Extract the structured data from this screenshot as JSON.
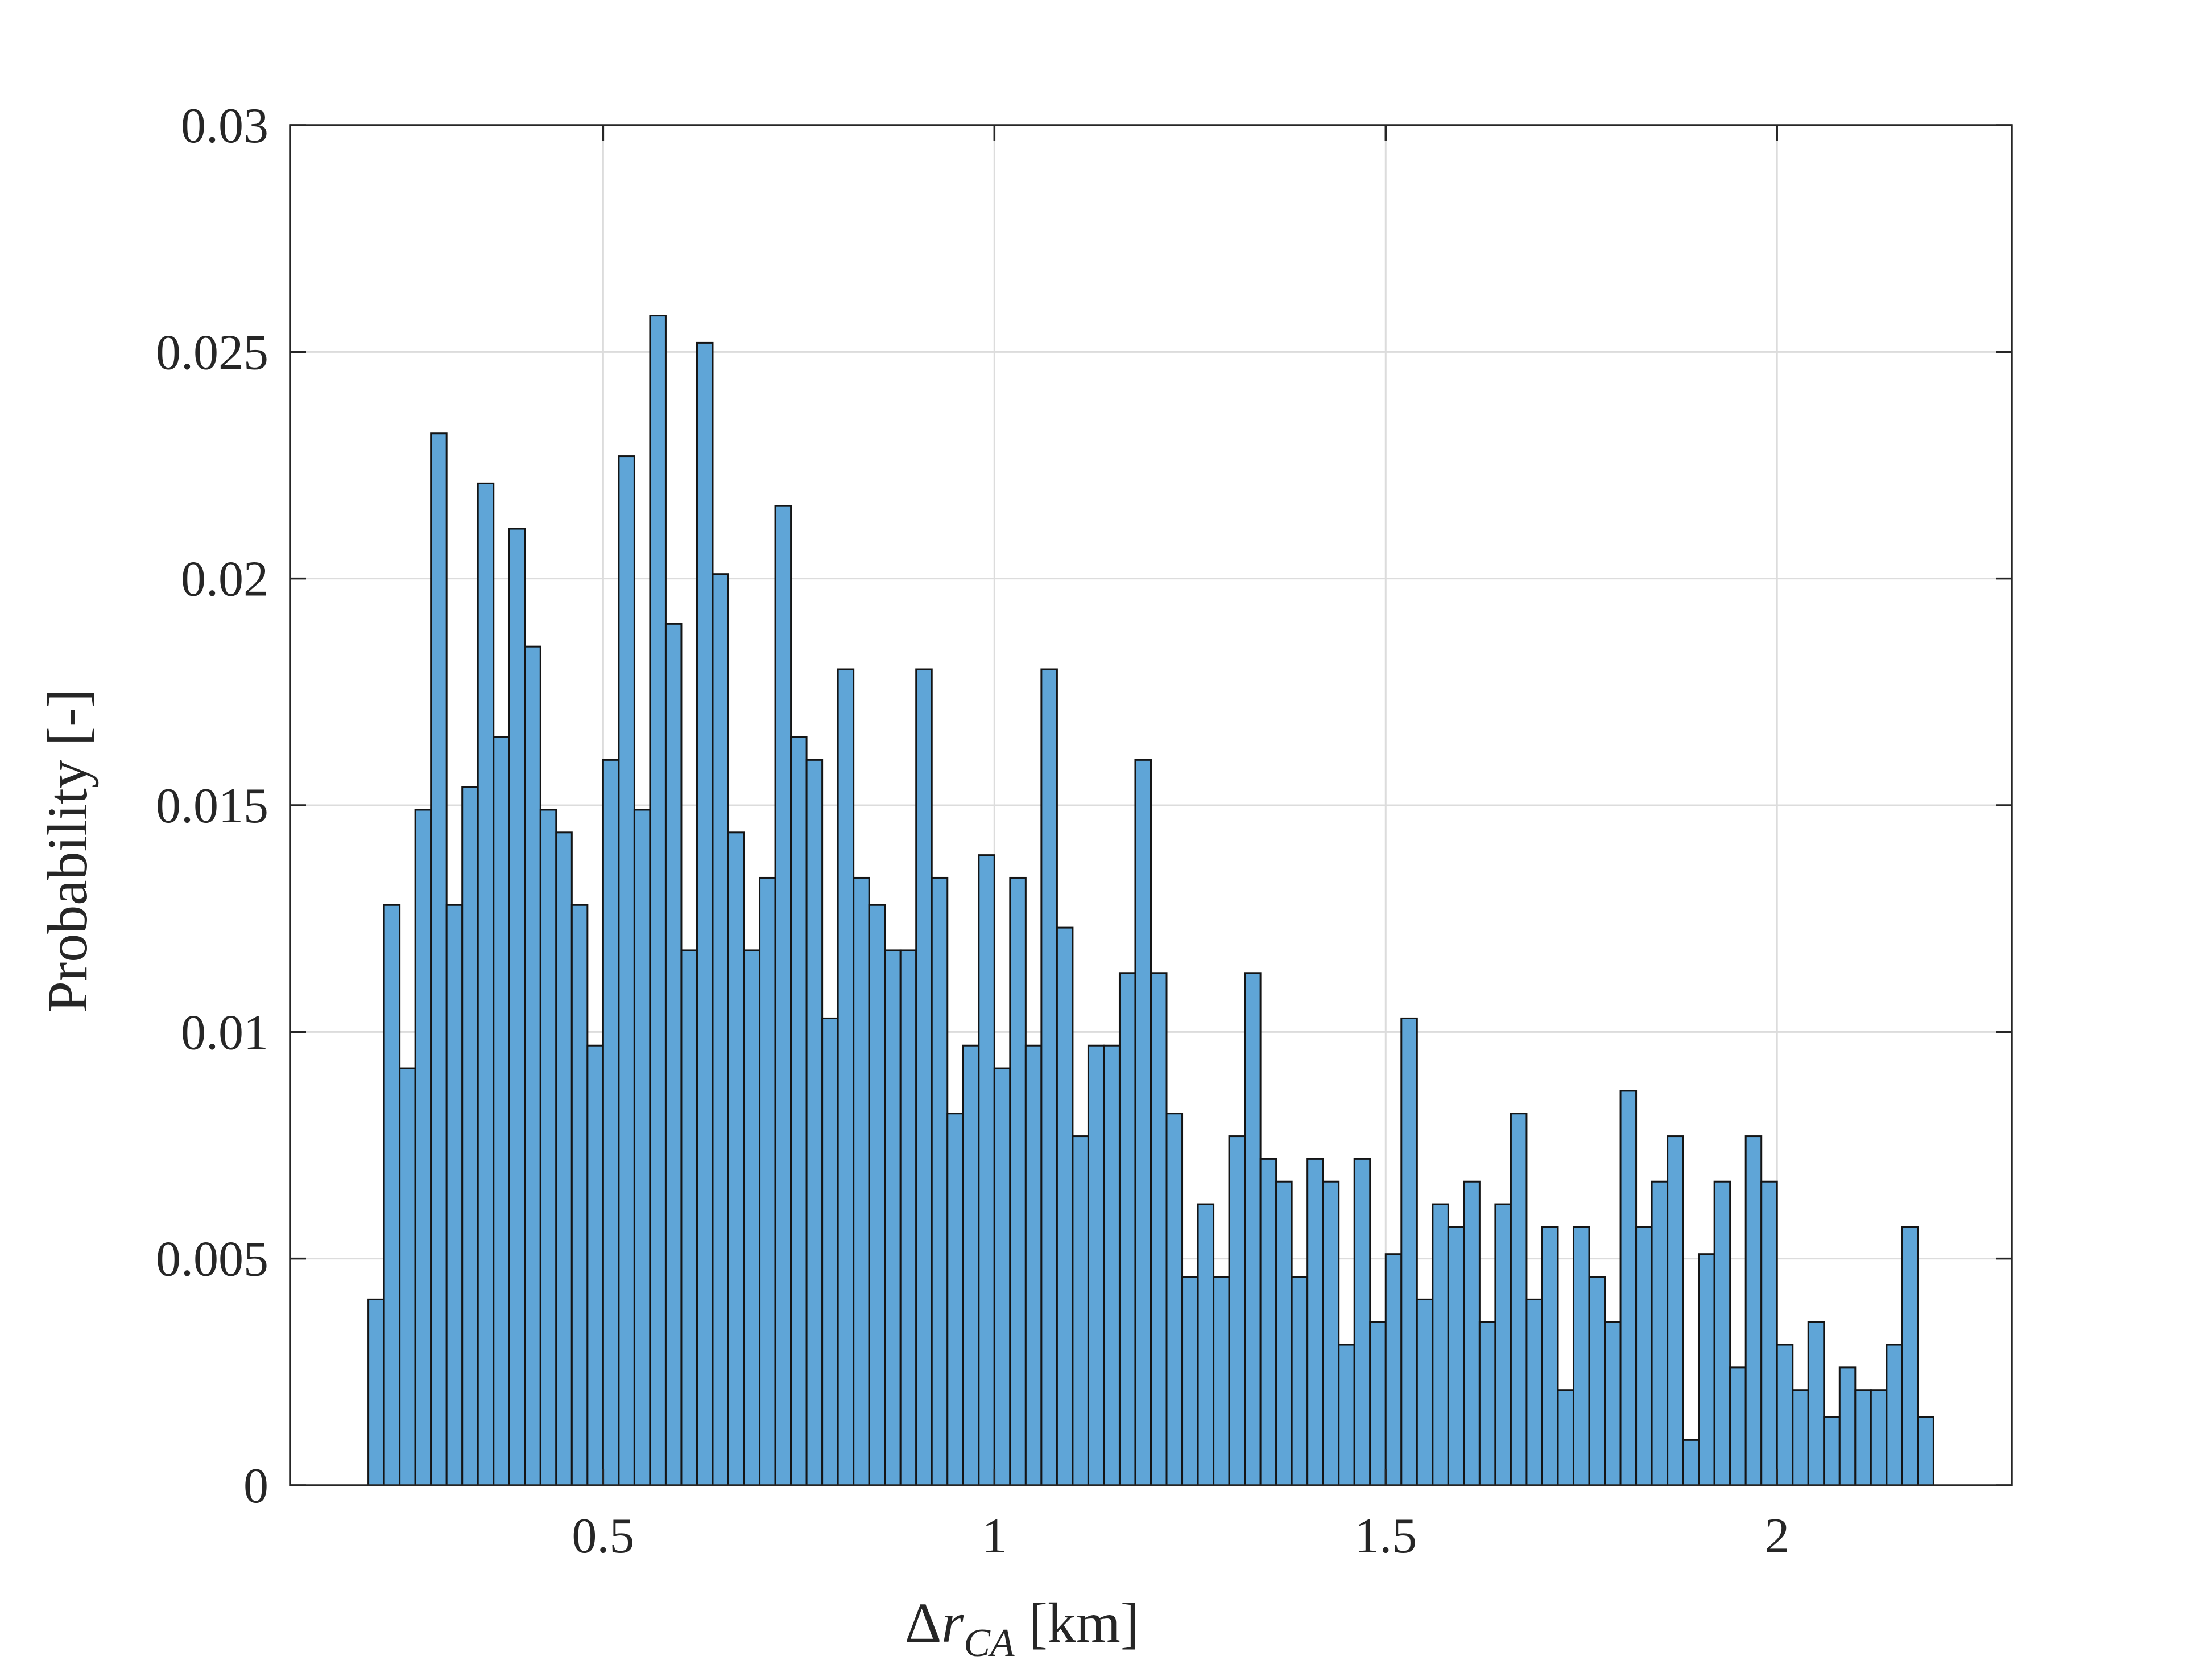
{
  "chart_data": {
    "type": "bar",
    "title": "",
    "xlabel": {
      "prefix": "Δ",
      "var": "r",
      "subscript": "CA",
      "unit": "[km]"
    },
    "ylabel": "Probability [-]",
    "xlim": [
      0.1,
      2.3
    ],
    "ylim": [
      0,
      0.03
    ],
    "xticks": [
      0.5,
      1,
      1.5,
      2
    ],
    "xtick_labels": [
      "0.5",
      "1",
      "1.5",
      "2"
    ],
    "yticks": [
      0,
      0.005,
      0.01,
      0.015,
      0.02,
      0.025,
      0.03
    ],
    "ytick_labels": [
      "0",
      "0.005",
      "0.01",
      "0.015",
      "0.02",
      "0.025",
      "0.03"
    ],
    "grid": true,
    "bin_start": 0.2,
    "bin_width": 0.02,
    "bar_color": "#5fa5d7",
    "edge_color": "#141414",
    "values": [
      0.0041,
      0.0128,
      0.0092,
      0.0149,
      0.0232,
      0.0128,
      0.0154,
      0.0221,
      0.0165,
      0.0211,
      0.0185,
      0.0149,
      0.0144,
      0.0128,
      0.0097,
      0.016,
      0.0227,
      0.0149,
      0.0258,
      0.019,
      0.0118,
      0.0252,
      0.0201,
      0.0144,
      0.0118,
      0.0134,
      0.0216,
      0.0165,
      0.016,
      0.0103,
      0.018,
      0.0134,
      0.0128,
      0.0118,
      0.0118,
      0.018,
      0.0134,
      0.0082,
      0.0097,
      0.0139,
      0.0092,
      0.0134,
      0.0097,
      0.018,
      0.0123,
      0.0077,
      0.0097,
      0.0097,
      0.0113,
      0.016,
      0.0113,
      0.0082,
      0.0046,
      0.0062,
      0.0046,
      0.0077,
      0.0113,
      0.0072,
      0.0067,
      0.0046,
      0.0072,
      0.0067,
      0.0031,
      0.0072,
      0.0036,
      0.0051,
      0.0103,
      0.0041,
      0.0062,
      0.0057,
      0.0067,
      0.0036,
      0.0062,
      0.0082,
      0.0041,
      0.0057,
      0.0021,
      0.0057,
      0.0046,
      0.0036,
      0.0087,
      0.0057,
      0.0067,
      0.0077,
      0.001,
      0.0051,
      0.0067,
      0.0026,
      0.0077,
      0.0067,
      0.0031,
      0.0021,
      0.0036,
      0.0015,
      0.0026,
      0.0021,
      0.0021,
      0.0031,
      0.0057,
      0.0015
    ]
  }
}
